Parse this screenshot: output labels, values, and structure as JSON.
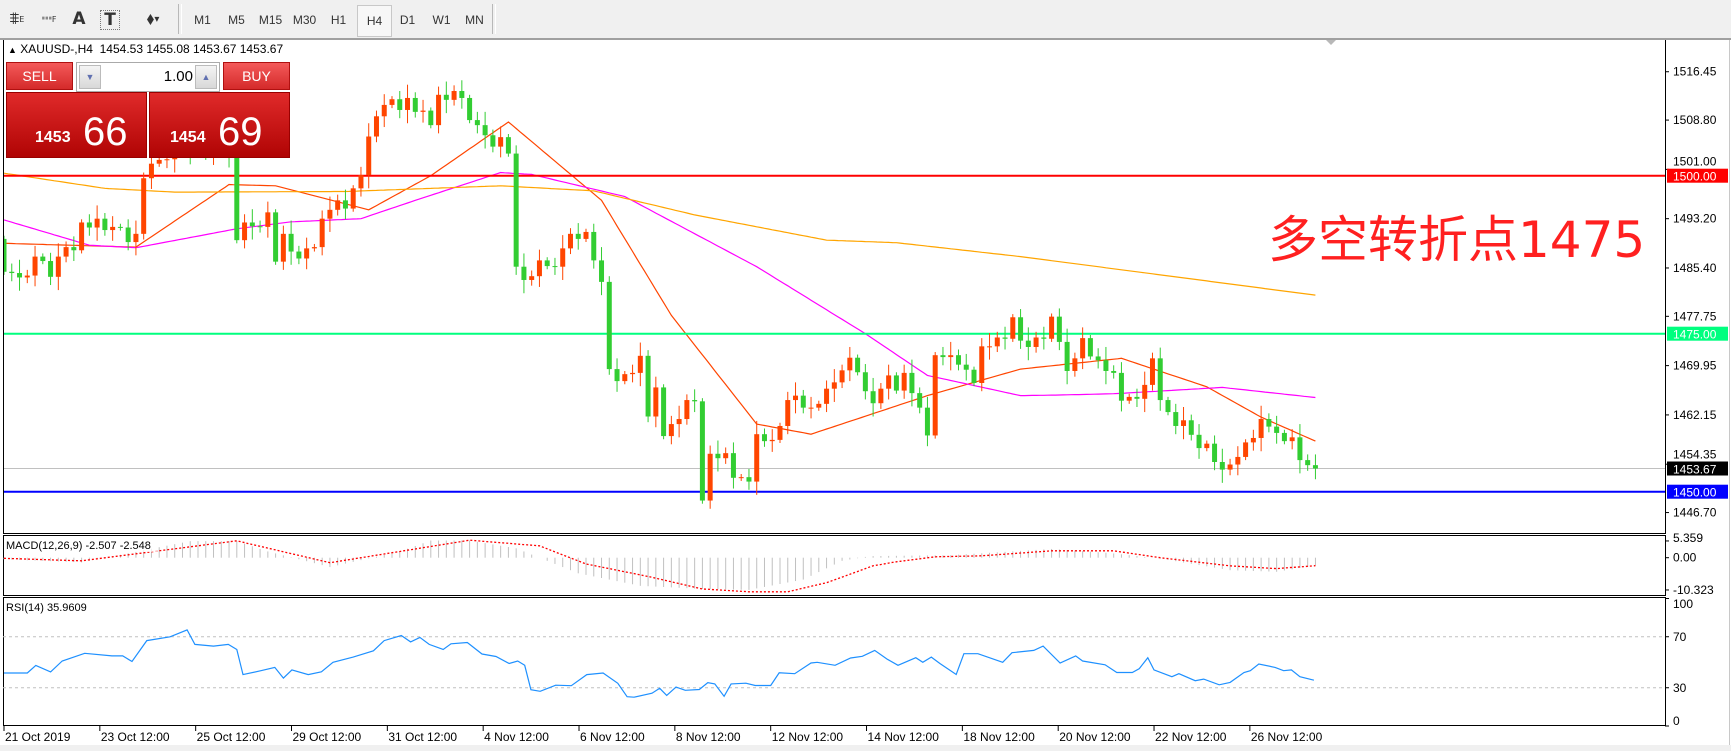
{
  "toolbar": {
    "tools": [
      {
        "name": "indicators-list-icon",
        "glyph": "⩨",
        "sub": "E"
      },
      {
        "name": "objects-list-icon",
        "glyph": "┅",
        "sub": "F"
      },
      {
        "name": "text-tool-icon",
        "glyph": "A",
        "sub": ""
      },
      {
        "name": "text-label-tool-icon",
        "glyph": "T",
        "sub": ""
      },
      {
        "name": "arrows-tool-icon",
        "glyph": "⬧",
        "sub": "▾"
      }
    ],
    "timeframes": [
      "M1",
      "M5",
      "M15",
      "M30",
      "H1",
      "H4",
      "D1",
      "W1",
      "MN"
    ],
    "active_timeframe": "H4"
  },
  "chart": {
    "symbol_arrow": "▲",
    "symbol": "XAUUSD-,H4",
    "ohlc": "1454.53 1455.08 1453.67 1453.67"
  },
  "trade_panel": {
    "sell_label": "SELL",
    "buy_label": "BUY",
    "lot": "1.00",
    "down_arrow": "▼",
    "up_arrow": "▲",
    "sell_price_main": "1453",
    "sell_price_pips": "66",
    "buy_price_main": "1454",
    "buy_price_pips": "69"
  },
  "annotation": {
    "text": "多空转折点1475",
    "color": "#FF2020"
  },
  "colors": {
    "bull": "#FF4500",
    "bear": "#32CD32",
    "grid_text": "#000000"
  },
  "chart_data": {
    "type": "candlestick",
    "price_axis": {
      "ticks": [
        "1516.45",
        "1508.80",
        "1501.00",
        "1493.20",
        "1485.40",
        "1477.75",
        "1469.95",
        "1462.15",
        "1454.35",
        "1446.70"
      ]
    },
    "time_axis": {
      "labels": [
        "21 Oct 2019",
        "23 Oct 12:00",
        "25 Oct 12:00",
        "29 Oct 12:00",
        "31 Oct 12:00",
        "4 Nov 12:00",
        "6 Nov 12:00",
        "8 Nov 12:00",
        "12 Nov 12:00",
        "14 Nov 12:00",
        "18 Nov 12:00",
        "20 Nov 12:00",
        "22 Nov 12:00",
        "26 Nov 12:00"
      ]
    },
    "first_open": 1490.0,
    "close": [
      1484.8,
      1484.6,
      1483.9,
      1484.2,
      1487.2,
      1486.5,
      1484.0,
      1487.2,
      1488.7,
      1488.2,
      1492.6,
      1491.8,
      1493.2,
      1491.4,
      1491.9,
      1491.8,
      1489.5,
      1490.8,
      1499.6,
      1501.9,
      1502.5,
      1502.6,
      1505.7,
      1505.9,
      1503.5,
      1504.9,
      1503.8,
      1504.3,
      1505.5,
      1503.0,
      1489.8,
      1492.6,
      1492.0,
      1491.9,
      1494.2,
      1486.4,
      1490.8,
      1488.0,
      1486.9,
      1488.5,
      1488.7,
      1493.2,
      1494.6,
      1496.1,
      1494.8,
      1498.0,
      1500.1,
      1506.2,
      1509.4,
      1511.2,
      1512.1,
      1510.4,
      1512.3,
      1510.1,
      1510.3,
      1508.0,
      1512.8,
      1512.0,
      1513.4,
      1512.3,
      1508.8,
      1508.0,
      1506.4,
      1504.6,
      1506.1,
      1503.5,
      1485.6,
      1483.5,
      1484.1,
      1486.6,
      1485.7,
      1485.6,
      1488.5,
      1490.8,
      1490.0,
      1491.1,
      1486.6,
      1483.2,
      1469.4,
      1467.5,
      1468.6,
      1468.8,
      1471.5,
      1461.9,
      1466.5,
      1458.8,
      1460.7,
      1461.5,
      1464.5,
      1464.3,
      1448.6,
      1456.0,
      1455.3,
      1456.1,
      1452.2,
      1452.3,
      1451.6,
      1459.1,
      1458.0,
      1458.2,
      1460.4,
      1464.5,
      1465.2,
      1463.3,
      1463.3,
      1463.9,
      1466.3,
      1467.3,
      1469.2,
      1471.2,
      1468.9,
      1465.9,
      1464.0,
      1466.3,
      1468.4,
      1466.0,
      1468.8,
      1465.6,
      1463.3,
      1458.9,
      1471.6,
      1471.3,
      1471.6,
      1470.1,
      1469.3,
      1467.2,
      1473.0,
      1473.0,
      1474.4,
      1474.2,
      1477.6,
      1473.9,
      1472.9,
      1474.4,
      1474.2,
      1477.7,
      1473.7,
      1469.1,
      1471.1,
      1474.3,
      1471.4,
      1470.8,
      1469.1,
      1468.8,
      1464.4,
      1465.0,
      1464.7,
      1466.9,
      1471.1,
      1464.5,
      1462.6,
      1460.4,
      1461.3,
      1459.0,
      1456.9,
      1457.6,
      1454.7,
      1453.5,
      1454.3,
      1455.5,
      1457.8,
      1458.5,
      1461.5,
      1460.3,
      1459.3,
      1458.0,
      1458.6,
      1455.0,
      1454.2,
      1453.67
    ],
    "moving_averages": [
      {
        "color": "#FF4500",
        "points": [
          [
            0,
            1489.3
          ],
          [
            17,
            1488.7
          ],
          [
            29,
            1498.6
          ],
          [
            35,
            1498.4
          ],
          [
            47,
            1494.6
          ],
          [
            55,
            1500
          ],
          [
            65,
            1508.5
          ],
          [
            77,
            1496.1
          ],
          [
            86,
            1477.9
          ],
          [
            97,
            1460.7
          ],
          [
            104,
            1459.1
          ],
          [
            119,
            1465.2
          ],
          [
            131,
            1469.4
          ],
          [
            144,
            1471.1
          ],
          [
            155,
            1466.6
          ],
          [
            162,
            1461.8
          ],
          [
            169,
            1458
          ]
        ]
      },
      {
        "color": "#FF00FF",
        "points": [
          [
            0,
            1493
          ],
          [
            11,
            1489
          ],
          [
            17,
            1488.6
          ],
          [
            30,
            1491.6
          ],
          [
            37,
            1492.7
          ],
          [
            46,
            1493.2
          ],
          [
            53,
            1496.1
          ],
          [
            64,
            1500.5
          ],
          [
            68,
            1500.2
          ],
          [
            80,
            1496.7
          ],
          [
            97,
            1485.6
          ],
          [
            111,
            1475
          ],
          [
            119,
            1468.4
          ],
          [
            131,
            1465.2
          ],
          [
            136,
            1465.3
          ],
          [
            143,
            1465.5
          ],
          [
            157,
            1466.5
          ],
          [
            169,
            1464.9
          ]
        ]
      },
      {
        "color": "#FFA500",
        "points": [
          [
            0,
            1500.4
          ],
          [
            13,
            1498
          ],
          [
            22,
            1497.4
          ],
          [
            44,
            1497.5
          ],
          [
            64,
            1498.4
          ],
          [
            76,
            1497.6
          ],
          [
            89,
            1493.8
          ],
          [
            106,
            1489.8
          ],
          [
            115,
            1489.4
          ],
          [
            131,
            1487.2
          ],
          [
            169,
            1481.1
          ]
        ]
      }
    ],
    "horizontal_lines": [
      {
        "price": 1500.0,
        "label": "1500.00",
        "color": "#FF0000",
        "label_text_color": "#FFFFFF",
        "width": 2
      },
      {
        "price": 1475.0,
        "label": "1475.00",
        "color": "#00FF7F",
        "label_text_color": "#FFFFFF",
        "width": 2
      },
      {
        "price": 1453.67,
        "label": "1453.67",
        "color": "#C0C0C0",
        "label_bg": "#000000",
        "label_text_color": "#FFFFFF",
        "width": 1
      },
      {
        "price": 1450.0,
        "label": "1450.00",
        "color": "#0000FF",
        "label_text_color": "#FFFFFF",
        "width": 2
      }
    ],
    "macd": {
      "title": "MACD(12,26,9) -2.507 -2.548",
      "axis_labels": [
        "5.359",
        "0.00",
        "-10.323"
      ],
      "range": [
        -10.323,
        5.359
      ],
      "main_color": "#C0C0C0",
      "signal_color": "#FF0000",
      "main": [
        [
          0,
          -0.5
        ],
        [
          10,
          -1.5
        ],
        [
          24,
          5.3
        ],
        [
          30,
          5.3
        ],
        [
          34,
          2
        ],
        [
          42,
          -3
        ],
        [
          51,
          2
        ],
        [
          55,
          5.5
        ],
        [
          60,
          5.5
        ],
        [
          66,
          3
        ],
        [
          70,
          -1
        ],
        [
          74,
          -5
        ],
        [
          82,
          -9
        ],
        [
          90,
          -10
        ],
        [
          96,
          -10.3
        ],
        [
          103,
          -7
        ],
        [
          108,
          -1
        ],
        [
          111.6,
          0.5
        ],
        [
          122,
          0.8
        ],
        [
          135,
          2.8
        ],
        [
          142.5,
          1.5
        ],
        [
          149,
          -0.3
        ],
        [
          158,
          -4
        ],
        [
          164,
          -4.5
        ],
        [
          169,
          -2.507
        ]
      ],
      "signal": [
        [
          0,
          -0.2
        ],
        [
          10,
          -1
        ],
        [
          30,
          5.4
        ],
        [
          42,
          -1.6
        ],
        [
          60,
          5.6
        ],
        [
          69,
          3.8
        ],
        [
          75,
          -2
        ],
        [
          83,
          -6
        ],
        [
          90,
          -10
        ],
        [
          96,
          -10.9
        ],
        [
          101,
          -10.9
        ],
        [
          106,
          -8
        ],
        [
          112,
          -2.6
        ],
        [
          115,
          -1.3
        ],
        [
          120,
          0.3
        ],
        [
          126,
          0.6
        ],
        [
          135,
          2.2
        ],
        [
          143,
          2.2
        ],
        [
          149,
          0
        ],
        [
          158,
          -2.6
        ],
        [
          164,
          -3.5
        ],
        [
          169,
          -2.548
        ]
      ]
    },
    "rsi": {
      "title": "RSI(14) 35.9609",
      "axis_labels": [
        "100",
        "70",
        "30",
        "0"
      ],
      "levels": [
        70,
        30
      ],
      "color": "#1E90FF",
      "points": [
        [
          0,
          41.6
        ],
        [
          3,
          41.6
        ],
        [
          4.1,
          47.5
        ],
        [
          6,
          42.4
        ],
        [
          7.5,
          51
        ],
        [
          10.4,
          57
        ],
        [
          13.9,
          55
        ],
        [
          15.3,
          55
        ],
        [
          16.5,
          50.6
        ],
        [
          18.4,
          67
        ],
        [
          21.4,
          70
        ],
        [
          23.6,
          75.4
        ],
        [
          24.6,
          64
        ],
        [
          27,
          62.7
        ],
        [
          28.9,
          64
        ],
        [
          30,
          60
        ],
        [
          30.8,
          40.3
        ],
        [
          33.1,
          43.4
        ],
        [
          34.9,
          46
        ],
        [
          36,
          37.6
        ],
        [
          37.1,
          44
        ],
        [
          39.2,
          40.3
        ],
        [
          40.9,
          42.5
        ],
        [
          42.4,
          50
        ],
        [
          45,
          54
        ],
        [
          47.6,
          59
        ],
        [
          49,
          67
        ],
        [
          51.2,
          71
        ],
        [
          52.4,
          66
        ],
        [
          53.6,
          69.5
        ],
        [
          54.8,
          64
        ],
        [
          56.6,
          60
        ],
        [
          57.6,
          64.5
        ],
        [
          59.7,
          65.5
        ],
        [
          61.6,
          56.5
        ],
        [
          63.4,
          54.5
        ],
        [
          65.1,
          49
        ],
        [
          66.2,
          51
        ],
        [
          67.1,
          47.6
        ],
        [
          67.9,
          28.5
        ],
        [
          69.1,
          27.2
        ],
        [
          71.1,
          32
        ],
        [
          73.1,
          31.6
        ],
        [
          75.1,
          40.3
        ],
        [
          77.2,
          41.6
        ],
        [
          79.1,
          33.5
        ],
        [
          80.3,
          23
        ],
        [
          81.2,
          22.6
        ],
        [
          83.5,
          25.7
        ],
        [
          84.5,
          29.6
        ],
        [
          85.4,
          24
        ],
        [
          86.6,
          30.6
        ],
        [
          87.8,
          28
        ],
        [
          89.6,
          28.6
        ],
        [
          90.7,
          34
        ],
        [
          91.6,
          33
        ],
        [
          92.8,
          23.3
        ],
        [
          93.7,
          33
        ],
        [
          95.6,
          33.6
        ],
        [
          96.8,
          31.8
        ],
        [
          98.8,
          31.8
        ],
        [
          99.9,
          41.7
        ],
        [
          101.9,
          41
        ],
        [
          104,
          49.4
        ],
        [
          104.8,
          50
        ],
        [
          107.1,
          47.6
        ],
        [
          109.1,
          53.3
        ],
        [
          110.6,
          54.7
        ],
        [
          112.2,
          59.3
        ],
        [
          113.8,
          52.5
        ],
        [
          115.2,
          47.6
        ],
        [
          117.5,
          53.6
        ],
        [
          118.4,
          50
        ],
        [
          119.5,
          54
        ],
        [
          120.6,
          49
        ],
        [
          122.7,
          40.4
        ],
        [
          123.7,
          56.7
        ],
        [
          125.5,
          56.7
        ],
        [
          128.7,
          50
        ],
        [
          129.9,
          57.5
        ],
        [
          132.7,
          59.3
        ],
        [
          133.9,
          62.7
        ],
        [
          136.1,
          49.4
        ],
        [
          138.1,
          55
        ],
        [
          139,
          51
        ],
        [
          141.9,
          48
        ],
        [
          143.4,
          42
        ],
        [
          145.4,
          42
        ],
        [
          146.3,
          45
        ],
        [
          147.4,
          53.6
        ],
        [
          148.2,
          44
        ],
        [
          150.5,
          38.7
        ],
        [
          151.4,
          41
        ],
        [
          153.5,
          35.5
        ],
        [
          154.6,
          36.8
        ],
        [
          156.6,
          32.3
        ],
        [
          158,
          34.2
        ],
        [
          159.8,
          42
        ],
        [
          160.6,
          43.4
        ],
        [
          161.7,
          48.6
        ],
        [
          163.8,
          46
        ],
        [
          164.9,
          43.4
        ],
        [
          165.9,
          44
        ],
        [
          167,
          38.7
        ],
        [
          168.8,
          35.96
        ]
      ]
    }
  }
}
